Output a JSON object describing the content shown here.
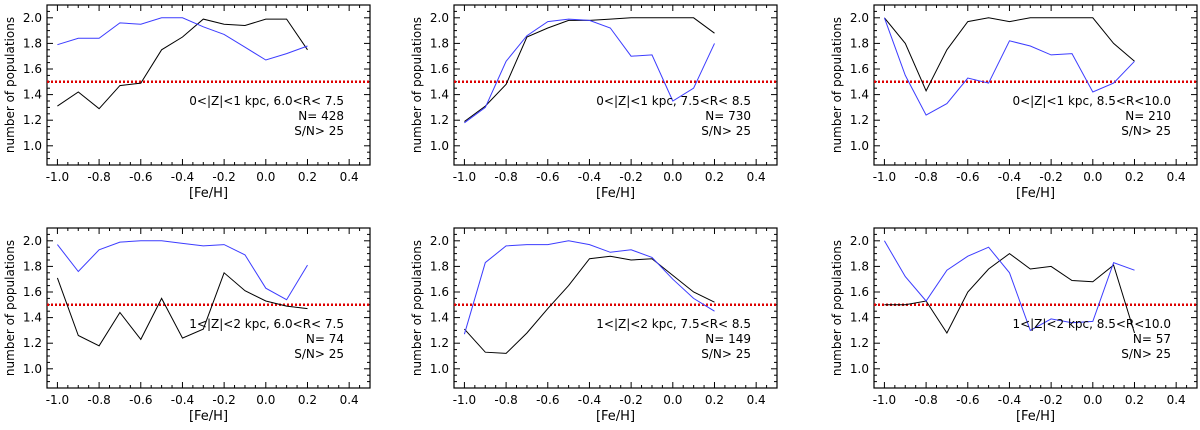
{
  "chart_data": [
    {
      "type": "line",
      "xlabel": "[Fe/H]",
      "ylabel": "number of populations",
      "xlim": [
        -1.05,
        0.5
      ],
      "ylim": [
        0.85,
        2.1
      ],
      "xticks": [
        -1.0,
        -0.8,
        -0.6,
        -0.4,
        -0.2,
        0.0,
        0.2,
        0.4
      ],
      "xtick_labels": [
        "-1.0",
        "-0.8",
        "-0.6",
        "-0.4",
        "-0.2",
        "0.0",
        "0.2",
        "0.4"
      ],
      "yticks": [
        1.0,
        1.2,
        1.4,
        1.6,
        1.8,
        2.0
      ],
      "ytick_labels": [
        "1.0",
        "1.2",
        "1.4",
        "1.6",
        "1.8",
        "2.0"
      ],
      "hline": 1.5,
      "annotation": [
        "0<|Z|<1 kpc, 6.0<R< 7.5",
        "N= 428",
        "S/N> 25"
      ],
      "series": [
        {
          "color": "#000000",
          "x": [
            -1.0,
            -0.9,
            -0.8,
            -0.7,
            -0.6,
            -0.5,
            -0.4,
            -0.3,
            -0.2,
            -0.1,
            0.0,
            0.1,
            0.2
          ],
          "y": [
            1.31,
            1.42,
            1.29,
            1.47,
            1.49,
            1.75,
            1.85,
            1.99,
            1.95,
            1.94,
            1.99,
            1.99,
            1.75
          ]
        },
        {
          "color": "#3c3cff",
          "x": [
            -1.0,
            -0.9,
            -0.8,
            -0.7,
            -0.6,
            -0.5,
            -0.4,
            -0.3,
            -0.2,
            -0.1,
            0.0,
            0.1,
            0.2
          ],
          "y": [
            1.79,
            1.84,
            1.84,
            1.96,
            1.95,
            2.0,
            2.0,
            1.93,
            1.87,
            1.77,
            1.67,
            1.72,
            1.78
          ]
        }
      ]
    },
    {
      "type": "line",
      "xlabel": "[Fe/H]",
      "ylabel": "number of populations",
      "xlim": [
        -1.05,
        0.5
      ],
      "ylim": [
        0.85,
        2.1
      ],
      "xticks": [
        -1.0,
        -0.8,
        -0.6,
        -0.4,
        -0.2,
        0.0,
        0.2,
        0.4
      ],
      "xtick_labels": [
        "-1.0",
        "-0.8",
        "-0.6",
        "-0.4",
        "-0.2",
        "0.0",
        "0.2",
        "0.4"
      ],
      "yticks": [
        1.0,
        1.2,
        1.4,
        1.6,
        1.8,
        2.0
      ],
      "ytick_labels": [
        "1.0",
        "1.2",
        "1.4",
        "1.6",
        "1.8",
        "2.0"
      ],
      "hline": 1.5,
      "annotation": [
        "0<|Z|<1 kpc, 7.5<R< 8.5",
        "N= 730",
        "S/N> 25"
      ],
      "series": [
        {
          "color": "#000000",
          "x": [
            -1.0,
            -0.9,
            -0.8,
            -0.7,
            -0.6,
            -0.5,
            -0.4,
            -0.3,
            -0.2,
            -0.1,
            0.0,
            0.1,
            0.2
          ],
          "y": [
            1.19,
            1.31,
            1.48,
            1.85,
            1.92,
            1.98,
            1.98,
            1.99,
            2.0,
            2.0,
            2.0,
            2.0,
            1.88
          ]
        },
        {
          "color": "#3c3cff",
          "x": [
            -1.0,
            -0.9,
            -0.8,
            -0.7,
            -0.6,
            -0.5,
            -0.4,
            -0.3,
            -0.2,
            -0.1,
            0.0,
            0.1,
            0.2
          ],
          "y": [
            1.18,
            1.3,
            1.66,
            1.86,
            1.97,
            1.99,
            1.98,
            1.92,
            1.7,
            1.71,
            1.35,
            1.45,
            1.8
          ]
        }
      ]
    },
    {
      "type": "line",
      "xlabel": "[Fe/H]",
      "ylabel": "number of populations",
      "xlim": [
        -1.05,
        0.5
      ],
      "ylim": [
        0.85,
        2.1
      ],
      "xticks": [
        -1.0,
        -0.8,
        -0.6,
        -0.4,
        -0.2,
        0.0,
        0.2,
        0.4
      ],
      "xtick_labels": [
        "-1.0",
        "-0.8",
        "-0.6",
        "-0.4",
        "-0.2",
        "0.0",
        "0.2",
        "0.4"
      ],
      "yticks": [
        1.0,
        1.2,
        1.4,
        1.6,
        1.8,
        2.0
      ],
      "ytick_labels": [
        "1.0",
        "1.2",
        "1.4",
        "1.6",
        "1.8",
        "2.0"
      ],
      "hline": 1.5,
      "annotation": [
        "0<|Z|<1 kpc, 8.5<R<10.0",
        "N= 210",
        "S/N> 25"
      ],
      "series": [
        {
          "color": "#000000",
          "x": [
            -1.0,
            -0.9,
            -0.8,
            -0.7,
            -0.6,
            -0.5,
            -0.4,
            -0.3,
            -0.2,
            -0.1,
            0.0,
            0.1,
            0.2
          ],
          "y": [
            2.0,
            1.8,
            1.43,
            1.75,
            1.97,
            2.0,
            1.97,
            2.0,
            2.0,
            2.0,
            2.0,
            1.8,
            1.66
          ]
        },
        {
          "color": "#3c3cff",
          "x": [
            -1.0,
            -0.9,
            -0.8,
            -0.7,
            -0.6,
            -0.5,
            -0.4,
            -0.3,
            -0.2,
            -0.1,
            0.0,
            0.1,
            0.2
          ],
          "y": [
            2.0,
            1.55,
            1.24,
            1.33,
            1.53,
            1.49,
            1.82,
            1.78,
            1.71,
            1.72,
            1.42,
            1.49,
            1.66
          ]
        }
      ]
    },
    {
      "type": "line",
      "xlabel": "[Fe/H]",
      "ylabel": "number of populations",
      "xlim": [
        -1.05,
        0.5
      ],
      "ylim": [
        0.85,
        2.1
      ],
      "xticks": [
        -1.0,
        -0.8,
        -0.6,
        -0.4,
        -0.2,
        0.0,
        0.2,
        0.4
      ],
      "xtick_labels": [
        "-1.0",
        "-0.8",
        "-0.6",
        "-0.4",
        "-0.2",
        "0.0",
        "0.2",
        "0.4"
      ],
      "yticks": [
        1.0,
        1.2,
        1.4,
        1.6,
        1.8,
        2.0
      ],
      "ytick_labels": [
        "1.0",
        "1.2",
        "1.4",
        "1.6",
        "1.8",
        "2.0"
      ],
      "hline": 1.5,
      "annotation": [
        "1<|Z|<2 kpc, 6.0<R< 7.5",
        "N=  74",
        "S/N> 25"
      ],
      "series": [
        {
          "color": "#000000",
          "x": [
            -1.0,
            -0.9,
            -0.8,
            -0.7,
            -0.6,
            -0.5,
            -0.4,
            -0.3,
            -0.2,
            -0.1,
            0.0,
            0.1,
            0.2
          ],
          "y": [
            1.71,
            1.26,
            1.18,
            1.44,
            1.23,
            1.55,
            1.24,
            1.31,
            1.75,
            1.61,
            1.53,
            1.49,
            1.47
          ]
        },
        {
          "color": "#3c3cff",
          "x": [
            -1.0,
            -0.9,
            -0.8,
            -0.7,
            -0.6,
            -0.5,
            -0.4,
            -0.3,
            -0.2,
            -0.1,
            0.0,
            0.1,
            0.2
          ],
          "y": [
            1.97,
            1.76,
            1.93,
            1.99,
            2.0,
            2.0,
            1.98,
            1.96,
            1.97,
            1.89,
            1.63,
            1.54,
            1.81
          ]
        }
      ]
    },
    {
      "type": "line",
      "xlabel": "[Fe/H]",
      "ylabel": "number of populations",
      "xlim": [
        -1.05,
        0.5
      ],
      "ylim": [
        0.85,
        2.1
      ],
      "xticks": [
        -1.0,
        -0.8,
        -0.6,
        -0.4,
        -0.2,
        0.0,
        0.2,
        0.4
      ],
      "xtick_labels": [
        "-1.0",
        "-0.8",
        "-0.6",
        "-0.4",
        "-0.2",
        "0.0",
        "0.2",
        "0.4"
      ],
      "yticks": [
        1.0,
        1.2,
        1.4,
        1.6,
        1.8,
        2.0
      ],
      "ytick_labels": [
        "1.0",
        "1.2",
        "1.4",
        "1.6",
        "1.8",
        "2.0"
      ],
      "hline": 1.5,
      "annotation": [
        "1<|Z|<2 kpc, 7.5<R< 8.5",
        "N= 149",
        "S/N> 25"
      ],
      "series": [
        {
          "color": "#000000",
          "x": [
            -1.0,
            -0.9,
            -0.8,
            -0.7,
            -0.6,
            -0.5,
            -0.4,
            -0.3,
            -0.2,
            -0.1,
            0.0,
            0.1,
            0.2
          ],
          "y": [
            1.31,
            1.13,
            1.12,
            1.28,
            1.47,
            1.65,
            1.86,
            1.88,
            1.85,
            1.86,
            1.73,
            1.6,
            1.52
          ]
        },
        {
          "color": "#3c3cff",
          "x": [
            -1.0,
            -0.9,
            -0.8,
            -0.7,
            -0.6,
            -0.5,
            -0.4,
            -0.3,
            -0.2,
            -0.1,
            0.0,
            0.1,
            0.2
          ],
          "y": [
            1.27,
            1.83,
            1.96,
            1.97,
            1.97,
            2.0,
            1.97,
            1.91,
            1.93,
            1.87,
            1.7,
            1.55,
            1.45
          ]
        }
      ]
    },
    {
      "type": "line",
      "xlabel": "[Fe/H]",
      "ylabel": "number of populations",
      "xlim": [
        -1.05,
        0.5
      ],
      "ylim": [
        0.85,
        2.1
      ],
      "xticks": [
        -1.0,
        -0.8,
        -0.6,
        -0.4,
        -0.2,
        0.0,
        0.2,
        0.4
      ],
      "xtick_labels": [
        "-1.0",
        "-0.8",
        "-0.6",
        "-0.4",
        "-0.2",
        "0.0",
        "0.2",
        "0.4"
      ],
      "yticks": [
        1.0,
        1.2,
        1.4,
        1.6,
        1.8,
        2.0
      ],
      "ytick_labels": [
        "1.0",
        "1.2",
        "1.4",
        "1.6",
        "1.8",
        "2.0"
      ],
      "hline": 1.5,
      "annotation": [
        "1<|Z|<2 kpc, 8.5<R<10.0",
        "N=  57",
        "S/N> 25"
      ],
      "series": [
        {
          "color": "#000000",
          "x": [
            -1.0,
            -0.9,
            -0.8,
            -0.7,
            -0.6,
            -0.5,
            -0.4,
            -0.3,
            -0.2,
            -0.1,
            0.0,
            0.1,
            0.2
          ],
          "y": [
            1.5,
            1.5,
            1.53,
            1.28,
            1.6,
            1.78,
            1.9,
            1.78,
            1.8,
            1.69,
            1.68,
            1.81,
            1.28
          ]
        },
        {
          "color": "#3c3cff",
          "x": [
            -1.0,
            -0.9,
            -0.8,
            -0.7,
            -0.6,
            -0.5,
            -0.4,
            -0.3,
            -0.2,
            -0.1,
            0.0,
            0.1,
            0.2
          ],
          "y": [
            2.0,
            1.72,
            1.53,
            1.77,
            1.88,
            1.95,
            1.75,
            1.3,
            1.39,
            1.36,
            1.37,
            1.83,
            1.77
          ]
        }
      ]
    }
  ],
  "colors": {
    "axis": "#000000",
    "series_black": "#000000",
    "series_blue": "#3c3cff",
    "hline": "#dd0000"
  }
}
